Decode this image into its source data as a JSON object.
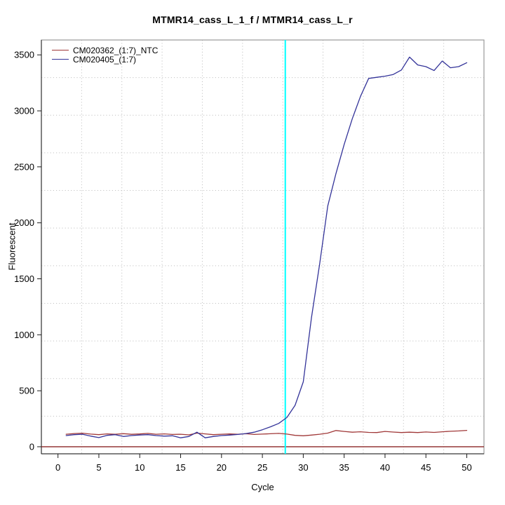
{
  "chart_data": {
    "type": "line",
    "title": "MTMR14_cass_L_1_f / MTMR14_cass_L_r",
    "xlabel": "Cycle",
    "ylabel": "Fluorescent",
    "xlim": [
      -2.03,
      52.1
    ],
    "ylim": [
      -63,
      3633
    ],
    "x_ticks": [
      0,
      5,
      10,
      15,
      20,
      25,
      30,
      35,
      40,
      45,
      50
    ],
    "y_ticks": [
      0,
      500,
      1000,
      1500,
      2000,
      2500,
      3000,
      3500
    ],
    "grid": {
      "divisions_x": 11,
      "divisions_y": 11,
      "style": "dotted",
      "color": "#c4c4c4"
    },
    "legend_position": "top-left",
    "x": [
      1,
      2,
      3,
      4,
      5,
      6,
      7,
      8,
      9,
      10,
      11,
      12,
      13,
      14,
      15,
      16,
      17,
      18,
      19,
      20,
      21,
      22,
      23,
      24,
      25,
      26,
      27,
      28,
      29,
      30,
      31,
      32,
      33,
      34,
      35,
      36,
      37,
      38,
      39,
      40,
      41,
      42,
      43,
      44,
      45,
      46,
      47,
      48,
      49,
      50
    ],
    "series": [
      {
        "name": "CM020362_(1:7)_NTC",
        "color": "#a03838",
        "values": [
          112,
          118,
          121,
          113,
          108,
          115,
          112,
          117,
          111,
          114,
          119,
          112,
          115,
          110,
          112,
          106,
          122,
          115,
          108,
          112,
          114,
          112,
          116,
          110,
          113,
          116,
          119,
          113,
          102,
          98,
          104,
          112,
          122,
          145,
          137,
          130,
          134,
          128,
          127,
          137,
          131,
          127,
          130,
          127,
          132,
          128,
          134,
          138,
          141,
          146
        ]
      },
      {
        "name": "CM020405_(1:7)",
        "color": "#333399",
        "values": [
          100,
          108,
          112,
          95,
          82,
          102,
          108,
          92,
          100,
          105,
          108,
          100,
          95,
          98,
          80,
          92,
          130,
          80,
          92,
          100,
          104,
          110,
          118,
          130,
          152,
          178,
          208,
          262,
          370,
          580,
          1150,
          1630,
          2150,
          2440,
          2700,
          2930,
          3130,
          3290,
          3300,
          3310,
          3325,
          3365,
          3480,
          3410,
          3395,
          3360,
          3445,
          3385,
          3395,
          3430
        ]
      }
    ],
    "threshold_line": {
      "y": 0,
      "color": "#8b2626"
    },
    "ct_marker_line": {
      "x": 27.8,
      "color": "#00ffff"
    }
  }
}
